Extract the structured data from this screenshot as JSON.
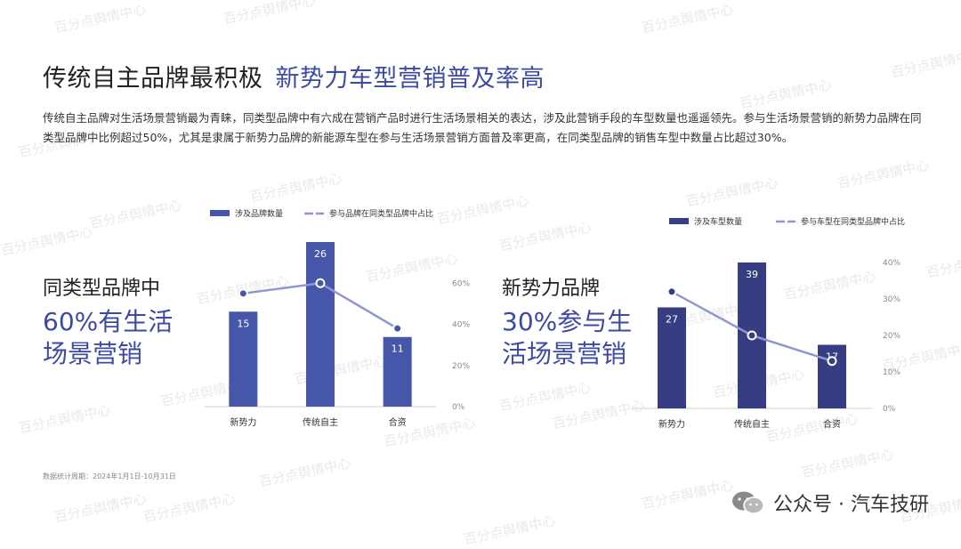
{
  "title_main": "传统自主品牌最积极",
  "title_accent": "新势力车型营销普及率高",
  "description": "传统自主品牌对生活场景营销最为青睐，同类型品牌中有六成在营销产品时进行生活场景相关的表达，涉及此营销手段的车型数量也遥遥领先。参与生活场景营销的新势力品牌在同类型品牌中比例超过50%，尤其是隶属于新势力品牌的新能源车型在参与生活场景营销方面普及率更高，在同类型品牌的销售车型中数量占比超过30%。",
  "left_panel": {
    "label": "同类型品牌中",
    "big_line1": "60%有生活",
    "big_line2": "场景营销"
  },
  "right_panel": {
    "label": "新势力品牌",
    "big_line1": "30%参与生",
    "big_line2": "活场景营销"
  },
  "note": "数据统计周期：2024年1月1日-10月31日",
  "brand": "公众号 · 汽车技研",
  "watermark": "百分点舆情中心",
  "colors": {
    "bar_left": "#4656a8",
    "bar_right": "#363d82",
    "line": "#8e96d3",
    "accent": "#3d4aa3"
  },
  "chart_data": [
    {
      "type": "bar",
      "categories": [
        "新势力",
        "传统自主",
        "合资"
      ],
      "series": [
        {
          "name": "涉及品牌数量",
          "values": [
            15,
            26,
            11
          ]
        },
        {
          "name": "参与品牌在同类型品牌中占比",
          "values": [
            55,
            60,
            38
          ],
          "axis": "secondary",
          "unit": "%"
        }
      ],
      "ylim": [
        0,
        26
      ],
      "y2lim": [
        0,
        80
      ],
      "y2ticks": [
        "0%",
        "20%",
        "40%",
        "60%"
      ],
      "legend": "top"
    },
    {
      "type": "bar",
      "categories": [
        "新势力",
        "传统自主",
        "合资"
      ],
      "series": [
        {
          "name": "涉及车型数量",
          "values": [
            27,
            39,
            17
          ]
        },
        {
          "name": "参与车型在同类型品牌中占比",
          "values": [
            32,
            20,
            13
          ],
          "axis": "secondary",
          "unit": "%"
        }
      ],
      "ylim": [
        0,
        39
      ],
      "y2lim": [
        0,
        40
      ],
      "y2ticks": [
        "0%",
        "10%",
        "20%",
        "30%",
        "40%"
      ],
      "legend": "top"
    }
  ]
}
